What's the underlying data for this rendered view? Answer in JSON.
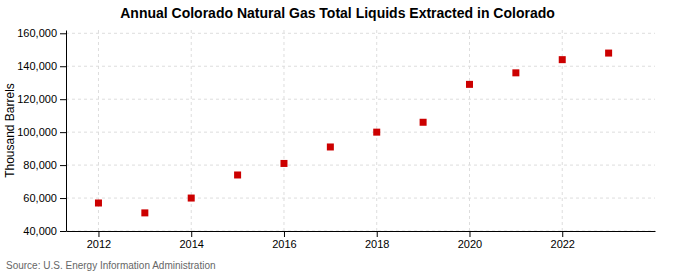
{
  "chart_data": {
    "type": "scatter",
    "title": "Annual Colorado Natural Gas Total Liquids Extracted in Colorado",
    "ylabel": "Thousand Barrels",
    "source": "Source: U.S. Energy Information Administration",
    "x": [
      2012,
      2013,
      2014,
      2015,
      2016,
      2017,
      2018,
      2019,
      2020,
      2021,
      2022,
      2023
    ],
    "values": [
      57000,
      51000,
      60000,
      74000,
      81000,
      91000,
      100000,
      106000,
      129000,
      136000,
      144000,
      148000
    ],
    "color": "#cc0000",
    "marker": "square",
    "xlim": [
      2011.3,
      2024.0
    ],
    "xticks": [
      2012,
      2014,
      2016,
      2018,
      2020,
      2022
    ],
    "ylim": [
      40000,
      162000
    ],
    "yticks": [
      {
        "value": 40000,
        "label": "40,000"
      },
      {
        "value": 60000,
        "label": "60,000"
      },
      {
        "value": 80000,
        "label": "80,000"
      },
      {
        "value": 100000,
        "label": "100,000"
      },
      {
        "value": 120000,
        "label": "120,000"
      },
      {
        "value": 140000,
        "label": "140,000"
      },
      {
        "value": 160000,
        "label": "160,000"
      }
    ],
    "grid": true
  }
}
